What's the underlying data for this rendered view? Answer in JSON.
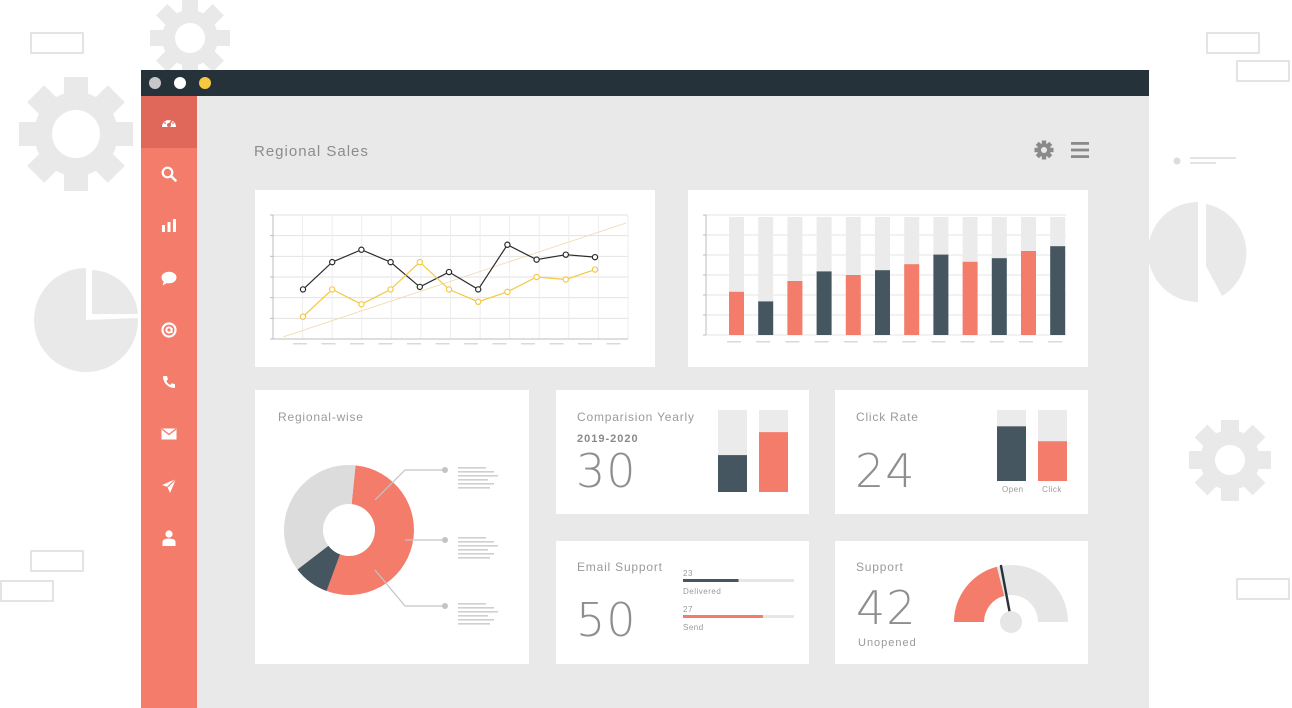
{
  "app": {
    "title": "Regional Sales",
    "window_dots": [
      "#c7c7c7",
      "#ffffff",
      "#f5c842"
    ]
  },
  "colors": {
    "accent": "#f47c6b",
    "dark": "#455661",
    "gold": "#f5c842",
    "panel_bg": "#e9e9e9",
    "titlebar": "#26323a"
  },
  "sidebar": {
    "items": [
      {
        "icon": "dashboard-icon",
        "active": true
      },
      {
        "icon": "search-icon",
        "active": false
      },
      {
        "icon": "bar-chart-icon",
        "active": false
      },
      {
        "icon": "chat-icon",
        "active": false
      },
      {
        "icon": "at-sign-icon",
        "active": false
      },
      {
        "icon": "phone-icon",
        "active": false
      },
      {
        "icon": "mail-icon",
        "active": false
      },
      {
        "icon": "send-icon",
        "active": false
      },
      {
        "icon": "user-icon",
        "active": false
      }
    ]
  },
  "header": {
    "icons": [
      "gear-icon",
      "hamburger-menu-icon"
    ]
  },
  "cards": {
    "regional": {
      "title": "Regional-wise"
    },
    "comparison": {
      "title": "Comparision Yearly",
      "period": "2019-2020",
      "value": "30"
    },
    "click_rate": {
      "title": "Click Rate",
      "value": "24",
      "bar_labels": [
        "Open",
        "Click"
      ]
    },
    "email_support": {
      "title": "Email Support",
      "value": "50",
      "rows": [
        {
          "count": "23",
          "label": "Delivered",
          "fraction": 0.5
        },
        {
          "count": "27",
          "label": "Send",
          "fraction": 0.72
        }
      ]
    },
    "support": {
      "title": "Support",
      "value": "42",
      "caption": "Unopened",
      "gauge_fraction": 0.42
    }
  },
  "chart_data": [
    {
      "type": "line",
      "x": [
        1,
        2,
        3,
        4,
        5,
        6,
        7,
        8,
        9,
        10,
        11
      ],
      "series": [
        {
          "color": "#2b2b2b",
          "values": [
            2.0,
            3.1,
            3.6,
            3.1,
            2.1,
            2.7,
            2.0,
            3.8,
            3.2,
            3.4,
            3.3
          ]
        },
        {
          "color": "#f5c842",
          "values": [
            0.9,
            2.0,
            1.4,
            2.0,
            3.1,
            2.0,
            1.5,
            1.9,
            2.5,
            2.4,
            2.8
          ]
        }
      ],
      "ylim": [
        0,
        5
      ],
      "grid": true
    },
    {
      "type": "bar",
      "stacked_track": true,
      "categories": [
        "1",
        "2",
        "3",
        "4",
        "5",
        "6",
        "7",
        "8",
        "9",
        "10",
        "11",
        "12"
      ],
      "values": [
        36,
        28,
        45,
        53,
        50,
        54,
        59,
        67,
        61,
        64,
        70,
        74
      ],
      "max": 100,
      "colors": [
        "#f47c6b",
        "#455661",
        "#f47c6b",
        "#455661",
        "#f47c6b",
        "#455661",
        "#f47c6b",
        "#455661",
        "#f47c6b",
        "#455661",
        "#f47c6b",
        "#455661"
      ],
      "grid": true
    },
    {
      "type": "pie",
      "donut": true,
      "slices": [
        {
          "value": 54,
          "color": "#f47c6b"
        },
        {
          "value": 9,
          "color": "#455661"
        },
        {
          "value": 37,
          "color": "#dcdcdc"
        }
      ]
    },
    {
      "type": "bar",
      "name": "comparison-yearly",
      "values": [
        0.45,
        0.73
      ],
      "max": 1,
      "colors": [
        "#455661",
        "#f47c6b"
      ]
    },
    {
      "type": "bar",
      "name": "click-rate",
      "categories": [
        "Open",
        "Click"
      ],
      "values": [
        0.77,
        0.56
      ],
      "max": 1,
      "colors": [
        "#455661",
        "#f47c6b"
      ]
    }
  ]
}
